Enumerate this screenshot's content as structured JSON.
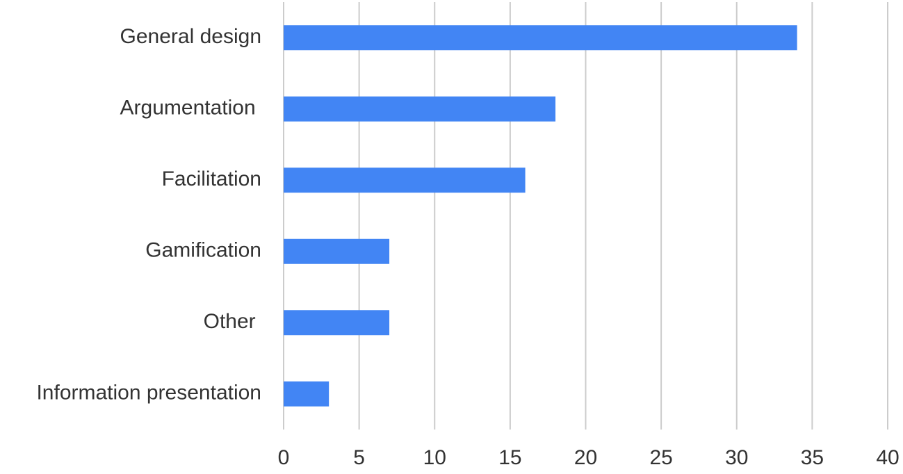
{
  "chart_data": {
    "type": "bar",
    "orientation": "horizontal",
    "categories": [
      "General design",
      "Argumentation ",
      "Facilitation",
      "Gamification",
      "Other ",
      "Information presentation"
    ],
    "values": [
      34,
      18,
      16,
      7,
      7,
      3
    ],
    "color": "#4285f4",
    "xlim": [
      0,
      40
    ],
    "xticks": [
      0,
      5,
      10,
      15,
      20,
      25,
      30,
      35,
      40
    ],
    "grid": true
  }
}
